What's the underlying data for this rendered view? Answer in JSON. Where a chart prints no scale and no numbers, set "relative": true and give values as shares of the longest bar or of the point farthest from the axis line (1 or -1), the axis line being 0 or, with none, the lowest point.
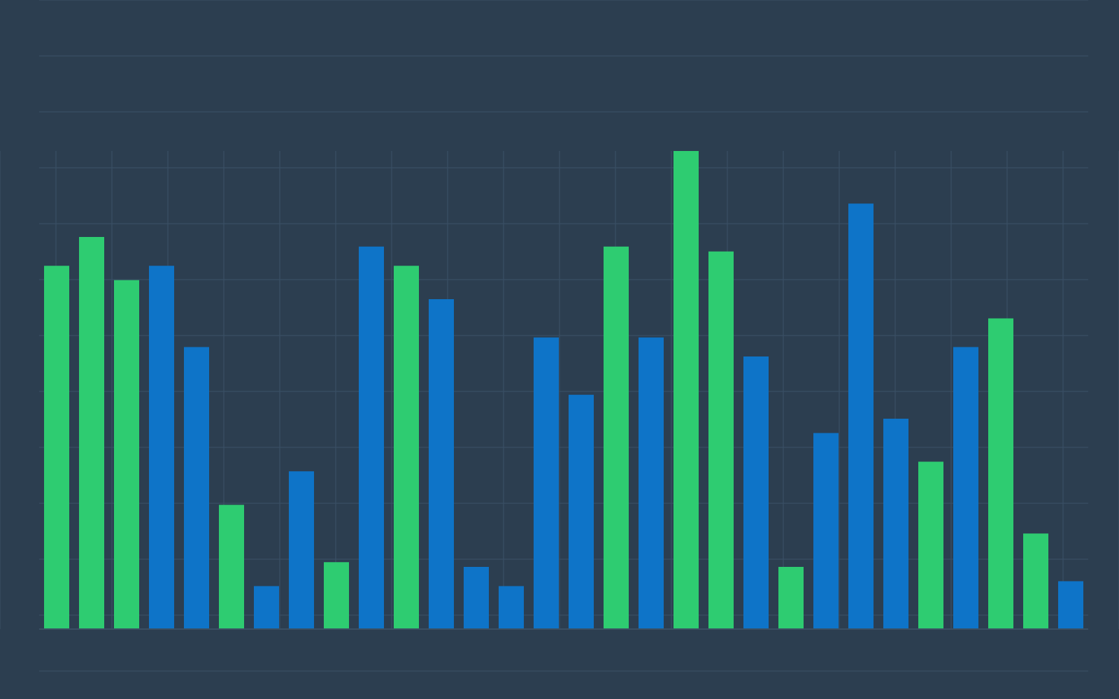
{
  "chart_data": {
    "type": "bar",
    "relative": true,
    "grid": true,
    "categories": [
      null,
      null,
      null,
      null,
      null,
      null,
      null,
      null,
      null,
      null,
      null,
      null,
      null,
      null,
      null,
      null,
      null,
      null,
      null,
      null,
      null,
      null,
      null,
      null,
      null,
      null,
      null,
      null,
      null,
      null
    ],
    "values": [
      0.76,
      0.82,
      0.73,
      0.76,
      0.59,
      0.26,
      0.09,
      0.33,
      0.14,
      0.8,
      0.76,
      0.69,
      0.13,
      0.09,
      0.61,
      0.49,
      0.8,
      0.61,
      1,
      0.79,
      0.57,
      0.13,
      0.41,
      0.89,
      0.44,
      0.35,
      0.59,
      0.65,
      0.2,
      0.1
    ],
    "colors": [
      "#2ecc71",
      "#2ecc71",
      "#2ecc71",
      "#0e74c8",
      "#0e74c8",
      "#2ecc71",
      "#0e74c8",
      "#0e74c8",
      "#2ecc71",
      "#0e74c8",
      "#2ecc71",
      "#0e74c8",
      "#0e74c8",
      "#0e74c8",
      "#0e74c8",
      "#0e74c8",
      "#2ecc71",
      "#0e74c8",
      "#2ecc71",
      "#2ecc71",
      "#0e74c8",
      "#2ecc71",
      "#0e74c8",
      "#0e74c8",
      "#0e74c8",
      "#2ecc71",
      "#0e74c8",
      "#2ecc71",
      "#2ecc71",
      "#0e74c8"
    ]
  }
}
